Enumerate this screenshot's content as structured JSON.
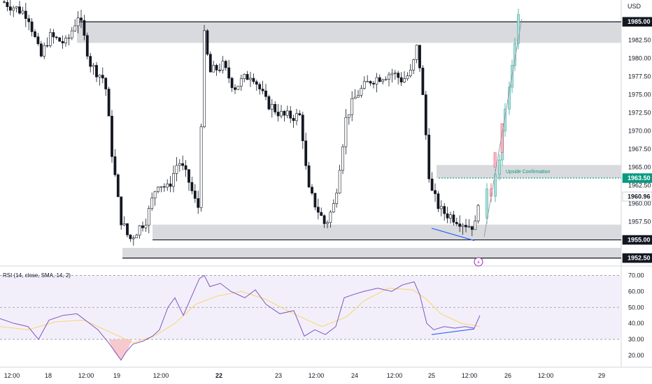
{
  "chart_data": [
    {
      "type": "candlestick",
      "symbol_currency": "USD",
      "price_axis": {
        "ticks": [
          1957.5,
          1960.0,
          1962.5,
          1965.0,
          1967.5,
          1970.0,
          1972.5,
          1975.0,
          1977.5,
          1980.0,
          1982.5
        ],
        "tick_labels": [
          "1957.50",
          "1960.00",
          "1962.50",
          "1965.00",
          "1967.50",
          "1970.00",
          "1972.50",
          "1975.00",
          "1977.50",
          "1980.00",
          "1982.50"
        ],
        "ylim": [
          1951.5,
          1988.0
        ],
        "highlight_levels": [
          {
            "value": 1985.0,
            "label": "1985.00",
            "color": "#131722"
          },
          {
            "value": 1963.5,
            "label": "1963.50",
            "color": "#089981"
          },
          {
            "value": 1960.96,
            "label": "1960.96",
            "color": "#ffffff"
          },
          {
            "value": 1955.0,
            "label": "1955.00",
            "color": "#131722"
          },
          {
            "value": 1952.5,
            "label": "1952.50",
            "color": "#131722"
          }
        ]
      },
      "time_axis": {
        "labels": [
          "12:00",
          "18",
          "12:00",
          "19",
          "12:00",
          "22",
          "23",
          "12:00",
          "24",
          "12:00",
          "25",
          "12:00",
          "26",
          "12:00",
          "29"
        ],
        "bold": [
          false,
          false,
          false,
          false,
          false,
          true,
          false,
          false,
          false,
          false,
          false,
          false,
          false,
          false,
          false
        ]
      },
      "zones": [
        {
          "name": "resistance-zone",
          "from": 1982.1,
          "to": 1985.0
        },
        {
          "name": "confirmation-zone",
          "from": 1963.5,
          "to": 1965.3
        },
        {
          "name": "support-zone-upper",
          "from": 1955.0,
          "to": 1957.1
        },
        {
          "name": "support-zone-lower",
          "from": 1952.5,
          "to": 1953.9
        }
      ],
      "annotations": [
        {
          "text": "Upside Confirmation",
          "level": 1963.5
        }
      ],
      "colors": {
        "up": "#089981",
        "down": "#131722",
        "projection_up": "#26a69a",
        "projection_down": "#f23645",
        "trendline": "#2962ff"
      }
    },
    {
      "type": "line",
      "title": "RSI (14, close, SMA, 14, 2)",
      "ylim": [
        13,
        75
      ],
      "ticks": [
        20.0,
        30.0,
        40.0,
        50.0,
        60.0,
        70.0
      ],
      "tick_labels": [
        "20.00",
        "30.00",
        "40.00",
        "50.00",
        "60.00",
        "70.00"
      ],
      "bands": {
        "upper": 70,
        "middle": 50,
        "lower": 30
      },
      "colors": {
        "rsi": "#7e57c2",
        "sma": "#f7d77a",
        "band_fill": "#f3effa",
        "oversold_fill": "#f6c9cf"
      }
    }
  ]
}
